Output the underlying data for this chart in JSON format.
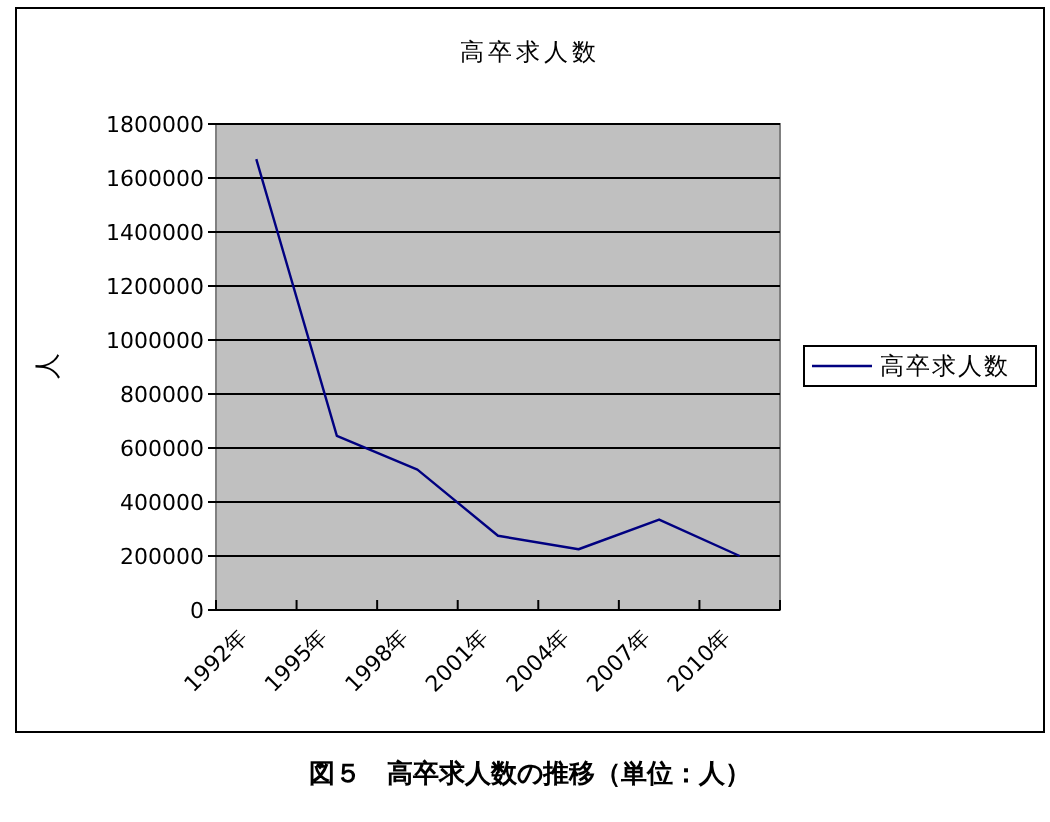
{
  "chart_data": {
    "type": "line",
    "title": "高卒求人数",
    "ylabel": "人",
    "categories": [
      "1992年",
      "1995年",
      "1998年",
      "2001年",
      "2004年",
      "2007年",
      "2010年"
    ],
    "series": [
      {
        "name": "高卒求人数",
        "color": "#000080",
        "values": [
          1670000,
          645000,
          520000,
          275000,
          225000,
          335000,
          200000
        ]
      }
    ],
    "ylim": [
      0,
      1800000
    ],
    "yticks": [
      0,
      200000,
      400000,
      600000,
      800000,
      1000000,
      1200000,
      1400000,
      1600000,
      1800000
    ],
    "grid": "y",
    "legend": "right",
    "annotations": [
      "図５　高卒求人数の推移（単位：人）"
    ]
  }
}
